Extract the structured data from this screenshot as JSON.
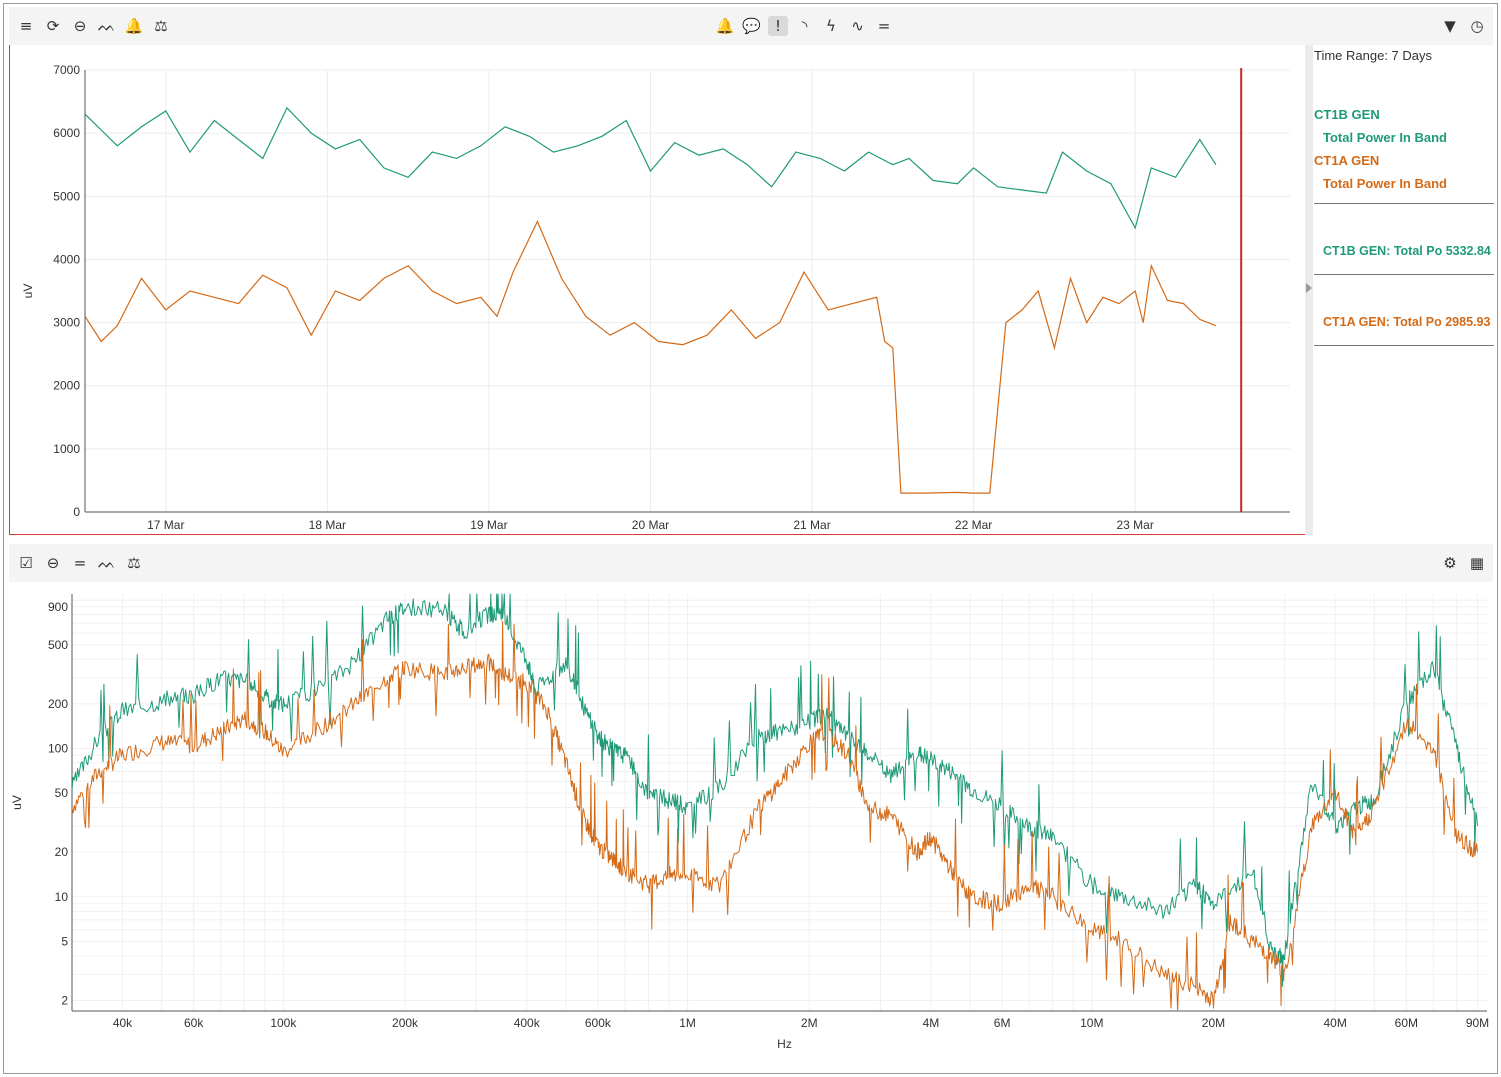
{
  "toolbar_top": {
    "left_icons": [
      {
        "name": "menu-icon",
        "glyph": "≡"
      },
      {
        "name": "refresh-icon",
        "glyph": "⟳"
      },
      {
        "name": "zoom-out-icon",
        "glyph": "⊖"
      },
      {
        "name": "peaks-icon",
        "glyph": "ᨓ"
      },
      {
        "name": "bell-outline-icon",
        "glyph": "🔔"
      },
      {
        "name": "balance-scale-icon",
        "glyph": "⚖"
      }
    ],
    "center_icons": [
      {
        "name": "bell-icon",
        "glyph": "🔔"
      },
      {
        "name": "comment-icon",
        "glyph": "💬"
      },
      {
        "name": "alert-icon",
        "glyph": "!"
      },
      {
        "name": "rss-icon",
        "glyph": "◝"
      },
      {
        "name": "bolt-icon",
        "glyph": "ϟ"
      },
      {
        "name": "waveform-icon",
        "glyph": "∿"
      },
      {
        "name": "equals-icon",
        "glyph": "="
      }
    ],
    "right_icons": [
      {
        "name": "filter-icon",
        "glyph": "▼"
      },
      {
        "name": "clock-icon",
        "glyph": "◷"
      }
    ]
  },
  "toolbar_bottom": {
    "left_icons": [
      {
        "name": "checkbox-icon",
        "glyph": "☑"
      },
      {
        "name": "zoom-out-icon",
        "glyph": "⊖"
      },
      {
        "name": "equals-icon",
        "glyph": "="
      },
      {
        "name": "peaks-icon",
        "glyph": "ᨓ"
      },
      {
        "name": "balance-scale-icon",
        "glyph": "⚖"
      }
    ],
    "right_icons": [
      {
        "name": "gear-icon",
        "glyph": "⚙"
      },
      {
        "name": "grid-icon",
        "glyph": "▦"
      }
    ]
  },
  "sidebar": {
    "time_range": "Time Range: 7 Days",
    "legend": [
      {
        "name": "CT1B GEN",
        "subtitle": "Total Power In Band",
        "color": "#1f9a78"
      },
      {
        "name": "CT1A GEN",
        "subtitle": "Total Power In Band",
        "color": "#d46a17"
      }
    ],
    "readouts": [
      {
        "label": "CT1B GEN: Total Po",
        "value": "5332.84",
        "color": "#1f9a78"
      },
      {
        "label": "CT1A GEN: Total Po",
        "value": "2985.93",
        "color": "#d46a17"
      }
    ]
  },
  "colors": {
    "green": "#1f9a78",
    "orange": "#d46a17",
    "cursor": "#c62828"
  },
  "chart_data": [
    {
      "type": "line",
      "ylabel": "uV",
      "xlabel": "",
      "ylim": [
        0,
        7000
      ],
      "yticks": [
        0,
        1000,
        2000,
        3000,
        4000,
        5000,
        6000,
        7000
      ],
      "xlim": [
        "2025-03-16 12:00",
        "2025-03-23 23:00"
      ],
      "xticks": [
        "17 Mar",
        "18 Mar",
        "19 Mar",
        "20 Mar",
        "21 Mar",
        "22 Mar",
        "23 Mar"
      ],
      "cursor_x": "2025-03-23 15:45",
      "grid": true,
      "series": [
        {
          "name": "CT1B GEN Total Power In Band",
          "color": "#1f9a78",
          "days": [
            16.5,
            16.6,
            16.7,
            16.85,
            17.0,
            17.15,
            17.3,
            17.45,
            17.6,
            17.75,
            17.9,
            18.05,
            18.2,
            18.35,
            18.5,
            18.65,
            18.8,
            18.95,
            19.1,
            19.25,
            19.4,
            19.55,
            19.7,
            19.85,
            20.0,
            20.15,
            20.3,
            20.45,
            20.6,
            20.75,
            20.9,
            21.05,
            21.2,
            21.35,
            21.5,
            21.6,
            21.75,
            21.9,
            22.0,
            22.15,
            22.3,
            22.45,
            22.55,
            22.7,
            22.85,
            23.0,
            23.1,
            23.25,
            23.4,
            23.5
          ],
          "values": [
            6300,
            6050,
            5800,
            6100,
            6350,
            5700,
            6200,
            5900,
            5600,
            6400,
            6000,
            5750,
            5900,
            5450,
            5300,
            5700,
            5600,
            5800,
            6100,
            5950,
            5700,
            5800,
            5950,
            6200,
            5400,
            5850,
            5650,
            5750,
            5500,
            5150,
            5700,
            5600,
            5400,
            5700,
            5500,
            5600,
            5250,
            5200,
            5450,
            5150,
            5100,
            5050,
            5700,
            5400,
            5200,
            4500,
            5450,
            5300,
            5900,
            5500
          ]
        },
        {
          "name": "CT1A GEN Total Power In Band",
          "color": "#d46a17",
          "days": [
            16.5,
            16.6,
            16.7,
            16.85,
            17.0,
            17.15,
            17.3,
            17.45,
            17.6,
            17.75,
            17.9,
            18.05,
            18.2,
            18.35,
            18.5,
            18.65,
            18.8,
            18.95,
            19.05,
            19.15,
            19.3,
            19.45,
            19.6,
            19.75,
            19.9,
            20.05,
            20.2,
            20.35,
            20.5,
            20.65,
            20.8,
            20.95,
            21.1,
            21.25,
            21.4,
            21.45,
            21.5,
            21.55,
            21.7,
            21.9,
            22.0,
            22.05,
            22.1,
            22.2,
            22.3,
            22.4,
            22.5,
            22.6,
            22.7,
            22.8,
            22.9,
            23.0,
            23.05,
            23.1,
            23.2,
            23.3,
            23.4,
            23.5
          ],
          "values": [
            3100,
            2700,
            2950,
            3700,
            3200,
            3500,
            3400,
            3300,
            3750,
            3550,
            2800,
            3500,
            3350,
            3700,
            3900,
            3500,
            3300,
            3400,
            3100,
            3800,
            4600,
            3700,
            3100,
            2800,
            3000,
            2700,
            2650,
            2800,
            3200,
            2750,
            3000,
            3800,
            3200,
            3300,
            3400,
            2700,
            2600,
            300,
            300,
            310,
            300,
            300,
            300,
            3000,
            3200,
            3500,
            2600,
            3700,
            3000,
            3400,
            3300,
            3500,
            3000,
            3900,
            3350,
            3300,
            3050,
            2950
          ]
        }
      ]
    },
    {
      "type": "line",
      "xlabel": "Hz",
      "ylabel": "uV",
      "xscale": "log",
      "yscale": "log",
      "xlim": [
        30000,
        95000000
      ],
      "ylim": [
        1.7,
        1100
      ],
      "xtick_values": [
        40000,
        60000,
        100000,
        200000,
        400000,
        600000,
        1000000,
        2000000,
        4000000,
        6000000,
        10000000,
        20000000,
        40000000,
        60000000,
        90000000
      ],
      "xtick_labels": [
        "40k",
        "60k",
        "100k",
        "200k",
        "400k",
        "600k",
        "1M",
        "2M",
        "4M",
        "6M",
        "10M",
        "20M",
        "40M",
        "60M",
        "90M"
      ],
      "ytick_values": [
        2,
        5,
        10,
        20,
        50,
        100,
        200,
        500,
        900
      ],
      "ytick_labels": [
        "2",
        "5",
        "10",
        "20",
        "50",
        "100",
        "200",
        "500",
        "900"
      ],
      "grid": true,
      "series": [
        {
          "name": "CT1B GEN",
          "color": "#1f9a78",
          "x": [
            30000,
            35000,
            40000,
            50000,
            60000,
            70000,
            80000,
            90000,
            100000,
            120000,
            150000,
            180000,
            200000,
            250000,
            280000,
            320000,
            350000,
            400000,
            420000,
            500000,
            550000,
            600000,
            650000,
            700000,
            800000,
            900000,
            1000000,
            1200000,
            1500000,
            1700000,
            2000000,
            2200000,
            2500000,
            2800000,
            3200000,
            3700000,
            4000000,
            4500000,
            5000000,
            6000000,
            7000000,
            8000000,
            10000000,
            12000000,
            15000000,
            18000000,
            20000000,
            25000000,
            28000000,
            30000000,
            35000000,
            40000000,
            45000000,
            50000000,
            60000000,
            70000000,
            80000000,
            90000000
          ],
          "x_unit": "Hz",
          "values": [
            55,
            120,
            180,
            210,
            230,
            300,
            290,
            220,
            200,
            250,
            380,
            750,
            900,
            860,
            600,
            800,
            780,
            400,
            250,
            380,
            200,
            120,
            100,
            90,
            50,
            45,
            40,
            55,
            120,
            130,
            150,
            170,
            120,
            90,
            65,
            95,
            85,
            70,
            55,
            40,
            30,
            25,
            12,
            10,
            8,
            12,
            9,
            15,
            4,
            4,
            60,
            30,
            40,
            45,
            200,
            350,
            100,
            30
          ]
        },
        {
          "name": "CT1A GEN",
          "color": "#d46a17",
          "x": [
            30000,
            35000,
            40000,
            50000,
            60000,
            70000,
            80000,
            90000,
            100000,
            120000,
            150000,
            180000,
            200000,
            250000,
            280000,
            320000,
            350000,
            400000,
            450000,
            500000,
            550000,
            600000,
            650000,
            700000,
            800000,
            900000,
            1000000,
            1200000,
            1500000,
            1700000,
            2000000,
            2200000,
            2500000,
            2800000,
            3200000,
            3700000,
            4000000,
            4500000,
            5000000,
            6000000,
            7000000,
            8000000,
            10000000,
            12000000,
            15000000,
            18000000,
            20000000,
            22000000,
            25000000,
            28000000,
            30000000,
            35000000,
            40000000,
            45000000,
            50000000,
            60000000,
            70000000,
            80000000,
            90000000
          ],
          "x_unit": "Hz",
          "values": [
            40,
            70,
            90,
            110,
            105,
            130,
            160,
            130,
            95,
            130,
            200,
            300,
            350,
            320,
            350,
            380,
            320,
            280,
            180,
            80,
            35,
            22,
            18,
            15,
            12,
            14,
            14,
            12,
            40,
            60,
            110,
            130,
            90,
            40,
            35,
            20,
            25,
            15,
            10,
            9,
            12,
            10,
            6,
            5,
            3,
            2.5,
            2,
            7,
            5,
            4,
            3,
            30,
            50,
            25,
            40,
            150,
            100,
            25,
            20
          ]
        }
      ]
    }
  ]
}
